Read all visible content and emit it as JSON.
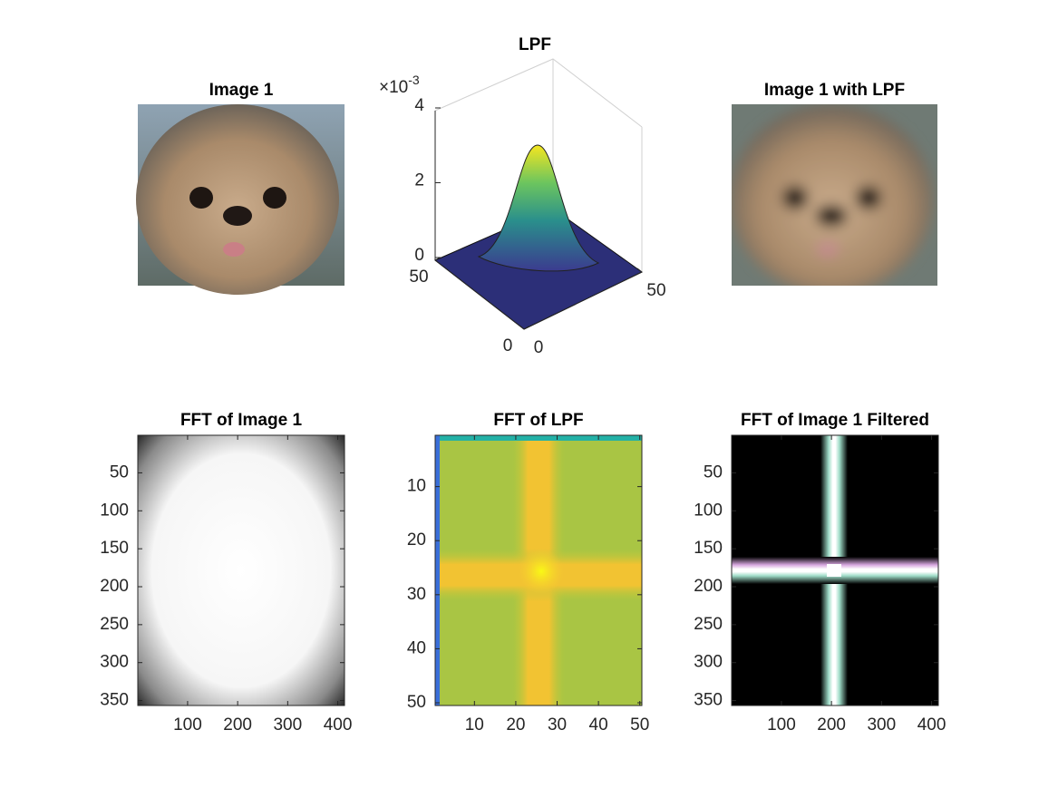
{
  "chart_data": [
    {
      "type": "image",
      "title": "Image 1"
    },
    {
      "type": "surface",
      "title": "LPF",
      "xlim": [
        0,
        50
      ],
      "xticks": [
        0,
        50
      ],
      "ylim": [
        0,
        50
      ],
      "yticks": [
        0,
        50
      ],
      "zlim": [
        0,
        0.004
      ],
      "zticks": [
        {
          "value": 0,
          "label": "0"
        },
        {
          "value": 0.002,
          "label": "2"
        },
        {
          "value": 0.004,
          "label": "4"
        }
      ],
      "z_multiplier": {
        "base": "×10",
        "exponent": "-3"
      }
    },
    {
      "type": "image",
      "title": "Image 1 with LPF"
    },
    {
      "type": "image_axes",
      "title": "FFT of Image 1",
      "xlim": [
        0.5,
        413.5
      ],
      "xticks": [
        100,
        200,
        300,
        400
      ],
      "ylim": [
        0.5,
        356.5
      ],
      "yticks": [
        50,
        100,
        150,
        200,
        250,
        300,
        350
      ],
      "y_reversed": true
    },
    {
      "type": "image_axes",
      "title": "FFT of LPF",
      "xlim": [
        0.5,
        50.5
      ],
      "xticks": [
        10,
        20,
        30,
        40,
        50
      ],
      "ylim": [
        0.5,
        50.5
      ],
      "yticks": [
        10,
        20,
        30,
        40,
        50
      ],
      "y_reversed": true
    },
    {
      "type": "image_axes",
      "title": "FFT of Image 1 Filtered",
      "xlim": [
        0.5,
        413.5
      ],
      "xticks": [
        100,
        200,
        300,
        400
      ],
      "ylim": [
        0.5,
        356.5
      ],
      "yticks": [
        50,
        100,
        150,
        200,
        250,
        300,
        350
      ],
      "y_reversed": true
    }
  ]
}
